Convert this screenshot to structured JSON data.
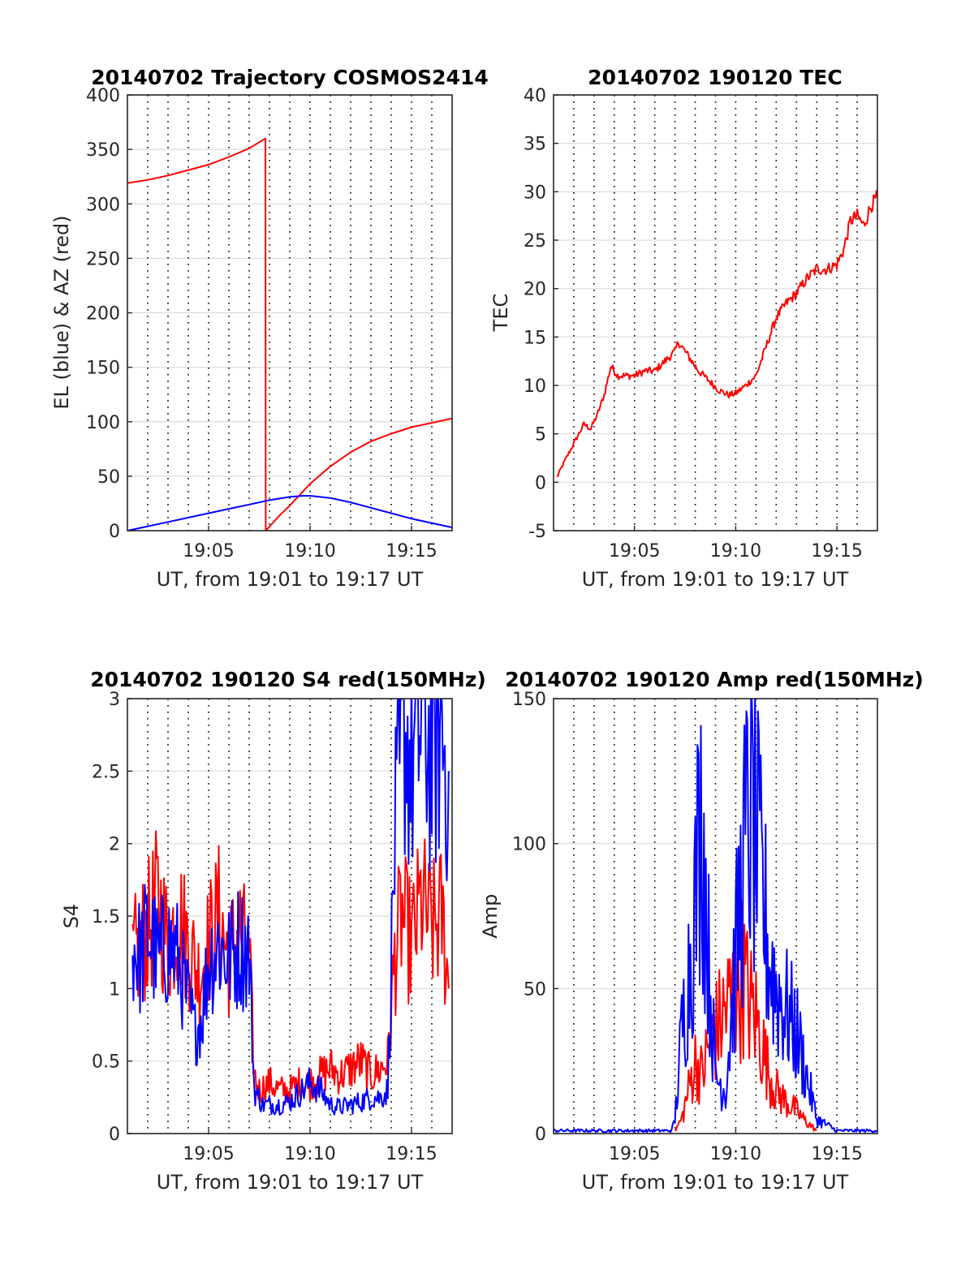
{
  "chart_data": [
    {
      "type": "line",
      "title": "20140702 Trajectory COSMOS2414",
      "xlabel": "UT, from 19:01 to 19:17 UT",
      "ylabel": "EL (blue) & AZ (red)",
      "xlim": [
        "19:01",
        "19:17"
      ],
      "ylim": [
        0,
        400
      ],
      "x_ticks": [
        "19:05",
        "19:10",
        "19:15"
      ],
      "y_ticks": [
        "0",
        "50",
        "100",
        "150",
        "200",
        "250",
        "300",
        "350",
        "400"
      ],
      "grid": "on",
      "series": [
        {
          "color": "#ff0000",
          "x": [
            "19:01:00",
            "19:02:00",
            "19:03:00",
            "19:04:00",
            "19:05:00",
            "19:06:00",
            "19:07:00",
            "19:07:48",
            "19:07:48",
            "19:07:49",
            "19:08:30",
            "19:09:00",
            "19:09:30",
            "19:10:00",
            "19:11:00",
            "19:12:00",
            "19:13:00",
            "19:14:00",
            "19:15:00",
            "19:16:00",
            "19:17:00"
          ],
          "values": [
            319,
            322,
            326,
            331,
            336,
            343,
            351,
            360,
            360,
            0,
            14,
            23,
            33,
            43,
            59,
            72,
            82,
            89,
            95,
            99,
            103
          ]
        },
        {
          "color": "#0000ff",
          "x": [
            "19:01:00",
            "19:02:00",
            "19:03:00",
            "19:04:00",
            "19:05:00",
            "19:06:00",
            "19:07:00",
            "19:08:00",
            "19:09:00",
            "19:09:40",
            "19:10:00",
            "19:11:00",
            "19:12:00",
            "19:13:00",
            "19:14:00",
            "19:15:00",
            "19:16:00",
            "19:17:00"
          ],
          "values": [
            0,
            4,
            8,
            12,
            16,
            20,
            24,
            28,
            31,
            32,
            32,
            30,
            26,
            21,
            16,
            11,
            7,
            3
          ]
        }
      ]
    },
    {
      "type": "line",
      "title": "20140702 190120 TEC",
      "xlabel": "UT, from 19:01 to 19:17 UT",
      "ylabel": "TEC",
      "xlim": [
        "19:01",
        "19:17"
      ],
      "ylim": [
        -5,
        40
      ],
      "x_ticks": [
        "19:05",
        "19:10",
        "19:15"
      ],
      "y_ticks": [
        "-5",
        "0",
        "5",
        "10",
        "15",
        "20",
        "25",
        "30",
        "35",
        "40"
      ],
      "grid": "on",
      "series": [
        {
          "color": "#ff0000",
          "x": [
            "19:01:10",
            "19:01:30",
            "19:02:00",
            "19:02:30",
            "19:02:50",
            "19:03:10",
            "19:03:30",
            "19:03:50",
            "19:04:10",
            "19:04:30",
            "19:05:00",
            "19:05:30",
            "19:06:00",
            "19:06:30",
            "19:07:00",
            "19:07:10",
            "19:07:40",
            "19:08:10",
            "19:08:40",
            "19:09:10",
            "19:09:40",
            "19:10:00",
            "19:10:30",
            "19:11:00",
            "19:11:30",
            "19:12:00",
            "19:12:30",
            "19:13:00",
            "19:13:30",
            "19:14:00",
            "19:14:30",
            "19:15:00",
            "19:15:20",
            "19:15:40",
            "19:16:00",
            "19:16:20",
            "19:16:40",
            "19:17:00"
          ],
          "values": [
            0.5,
            2,
            4,
            6,
            5.5,
            7,
            9,
            12,
            11,
            11,
            11,
            11.5,
            11.5,
            12.5,
            13.5,
            14.5,
            13,
            11.5,
            10.5,
            9.5,
            9,
            9.2,
            10,
            11,
            14,
            17,
            18.5,
            19.5,
            21,
            22,
            22,
            22.5,
            24,
            27,
            27.5,
            26.5,
            28.5,
            29.5
          ]
        }
      ]
    },
    {
      "type": "line",
      "title": "20140702 190120 S4 red(150MHz)",
      "xlabel": "UT, from 19:01 to 19:17 UT",
      "ylabel": "S4",
      "xlim": [
        "19:01",
        "19:17"
      ],
      "ylim": [
        0,
        3
      ],
      "x_ticks": [
        "19:05",
        "19:10",
        "19:15"
      ],
      "y_ticks": [
        "0",
        "0.5",
        "1",
        "1.5",
        "2",
        "2.5",
        "3"
      ],
      "grid": "on",
      "series": [
        {
          "color": "#ff0000",
          "x": [
            "19:01:15",
            "19:02:00",
            "19:02:30",
            "19:03:00",
            "19:03:30",
            "19:04:00",
            "19:04:30",
            "19:05:00",
            "19:05:30",
            "19:06:00",
            "19:06:30",
            "19:07:00",
            "19:07:15",
            "19:07:30",
            "19:08:00",
            "19:08:30",
            "19:09:00",
            "19:09:30",
            "19:10:00",
            "19:10:30",
            "19:11:00",
            "19:11:30",
            "19:12:00",
            "19:12:30",
            "19:13:00",
            "19:13:30",
            "19:13:50",
            "19:14:10",
            "19:14:30",
            "19:15:00",
            "19:15:30",
            "19:16:00",
            "19:16:30",
            "19:16:50"
          ],
          "values": [
            1.2,
            1.4,
            1.6,
            1.3,
            1.5,
            1.3,
            1.1,
            1.3,
            1.5,
            1.2,
            1.4,
            1.2,
            0.4,
            0.3,
            0.35,
            0.3,
            0.3,
            0.35,
            0.35,
            0.4,
            0.45,
            0.4,
            0.45,
            0.5,
            0.4,
            0.45,
            0.5,
            1.2,
            1.5,
            1.3,
            1.6,
            1.4,
            1.5,
            1.0
          ]
        },
        {
          "color": "#0000ff",
          "x": [
            "19:01:15",
            "19:01:40",
            "19:02:00",
            "19:02:30",
            "19:03:00",
            "19:03:30",
            "19:04:00",
            "19:04:20",
            "19:04:40",
            "19:05:00",
            "19:05:30",
            "19:06:00",
            "19:06:30",
            "19:07:00",
            "19:07:15",
            "19:07:40",
            "19:08:00",
            "19:08:30",
            "19:09:00",
            "19:09:30",
            "19:10:00",
            "19:10:30",
            "19:11:00",
            "19:11:30",
            "19:12:00",
            "19:12:30",
            "19:13:00",
            "19:13:30",
            "19:13:50",
            "19:14:10",
            "19:14:40",
            "19:15:00",
            "19:15:30",
            "19:16:00",
            "19:16:30",
            "19:16:50"
          ],
          "values": [
            1.3,
            1.2,
            1.4,
            1.2,
            1.3,
            1.2,
            0.9,
            0.7,
            0.8,
            1.2,
            1.3,
            1.2,
            1.3,
            1.25,
            0.3,
            0.2,
            0.2,
            0.2,
            0.22,
            0.28,
            0.35,
            0.3,
            0.2,
            0.18,
            0.2,
            0.22,
            0.25,
            0.25,
            0.3,
            2.0,
            2.8,
            2.5,
            2.9,
            2.6,
            2.8,
            2.5
          ]
        }
      ]
    },
    {
      "type": "line",
      "title": "20140702 190120 Amp red(150MHz)",
      "xlabel": "UT, from 19:01 to 19:17 UT",
      "ylabel": "Amp",
      "xlim": [
        "19:01",
        "19:17"
      ],
      "ylim": [
        0,
        150
      ],
      "x_ticks": [
        "19:05",
        "19:10",
        "19:15"
      ],
      "y_ticks": [
        "0",
        "50",
        "100",
        "150"
      ],
      "grid": "on",
      "series": [
        {
          "color": "#ff0000",
          "x": [
            "19:07:00",
            "19:07:20",
            "19:07:40",
            "19:08:00",
            "19:08:20",
            "19:08:40",
            "19:09:00",
            "19:09:20",
            "19:09:40",
            "19:10:00",
            "19:10:20",
            "19:10:40",
            "19:11:00",
            "19:11:20",
            "19:11:40",
            "19:12:00",
            "19:12:20",
            "19:12:40",
            "19:13:00",
            "19:13:20",
            "19:13:40",
            "19:14:00"
          ],
          "values": [
            1,
            5,
            15,
            25,
            20,
            30,
            35,
            40,
            45,
            50,
            55,
            45,
            40,
            30,
            20,
            15,
            12,
            10,
            8,
            5,
            3,
            1
          ]
        },
        {
          "color": "#0000ff",
          "x": [
            "19:01:00",
            "19:02:00",
            "19:03:00",
            "19:04:00",
            "19:05:00",
            "19:06:00",
            "19:06:50",
            "19:07:00",
            "19:07:20",
            "19:07:40",
            "19:08:00",
            "19:08:10",
            "19:08:20",
            "19:08:40",
            "19:09:00",
            "19:09:30",
            "19:10:00",
            "19:10:20",
            "19:10:40",
            "19:11:00",
            "19:11:20",
            "19:11:40",
            "19:12:00",
            "19:12:20",
            "19:12:40",
            "19:13:00",
            "19:13:20",
            "19:13:40",
            "19:14:00",
            "19:15:00",
            "19:16:00",
            "19:17:00"
          ],
          "values": [
            1,
            1,
            1,
            1,
            1,
            1,
            1,
            5,
            35,
            55,
            80,
            100,
            110,
            60,
            20,
            15,
            60,
            90,
            110,
            100,
            80,
            60,
            50,
            45,
            40,
            35,
            25,
            15,
            5,
            1,
            1,
            1
          ]
        }
      ]
    }
  ]
}
